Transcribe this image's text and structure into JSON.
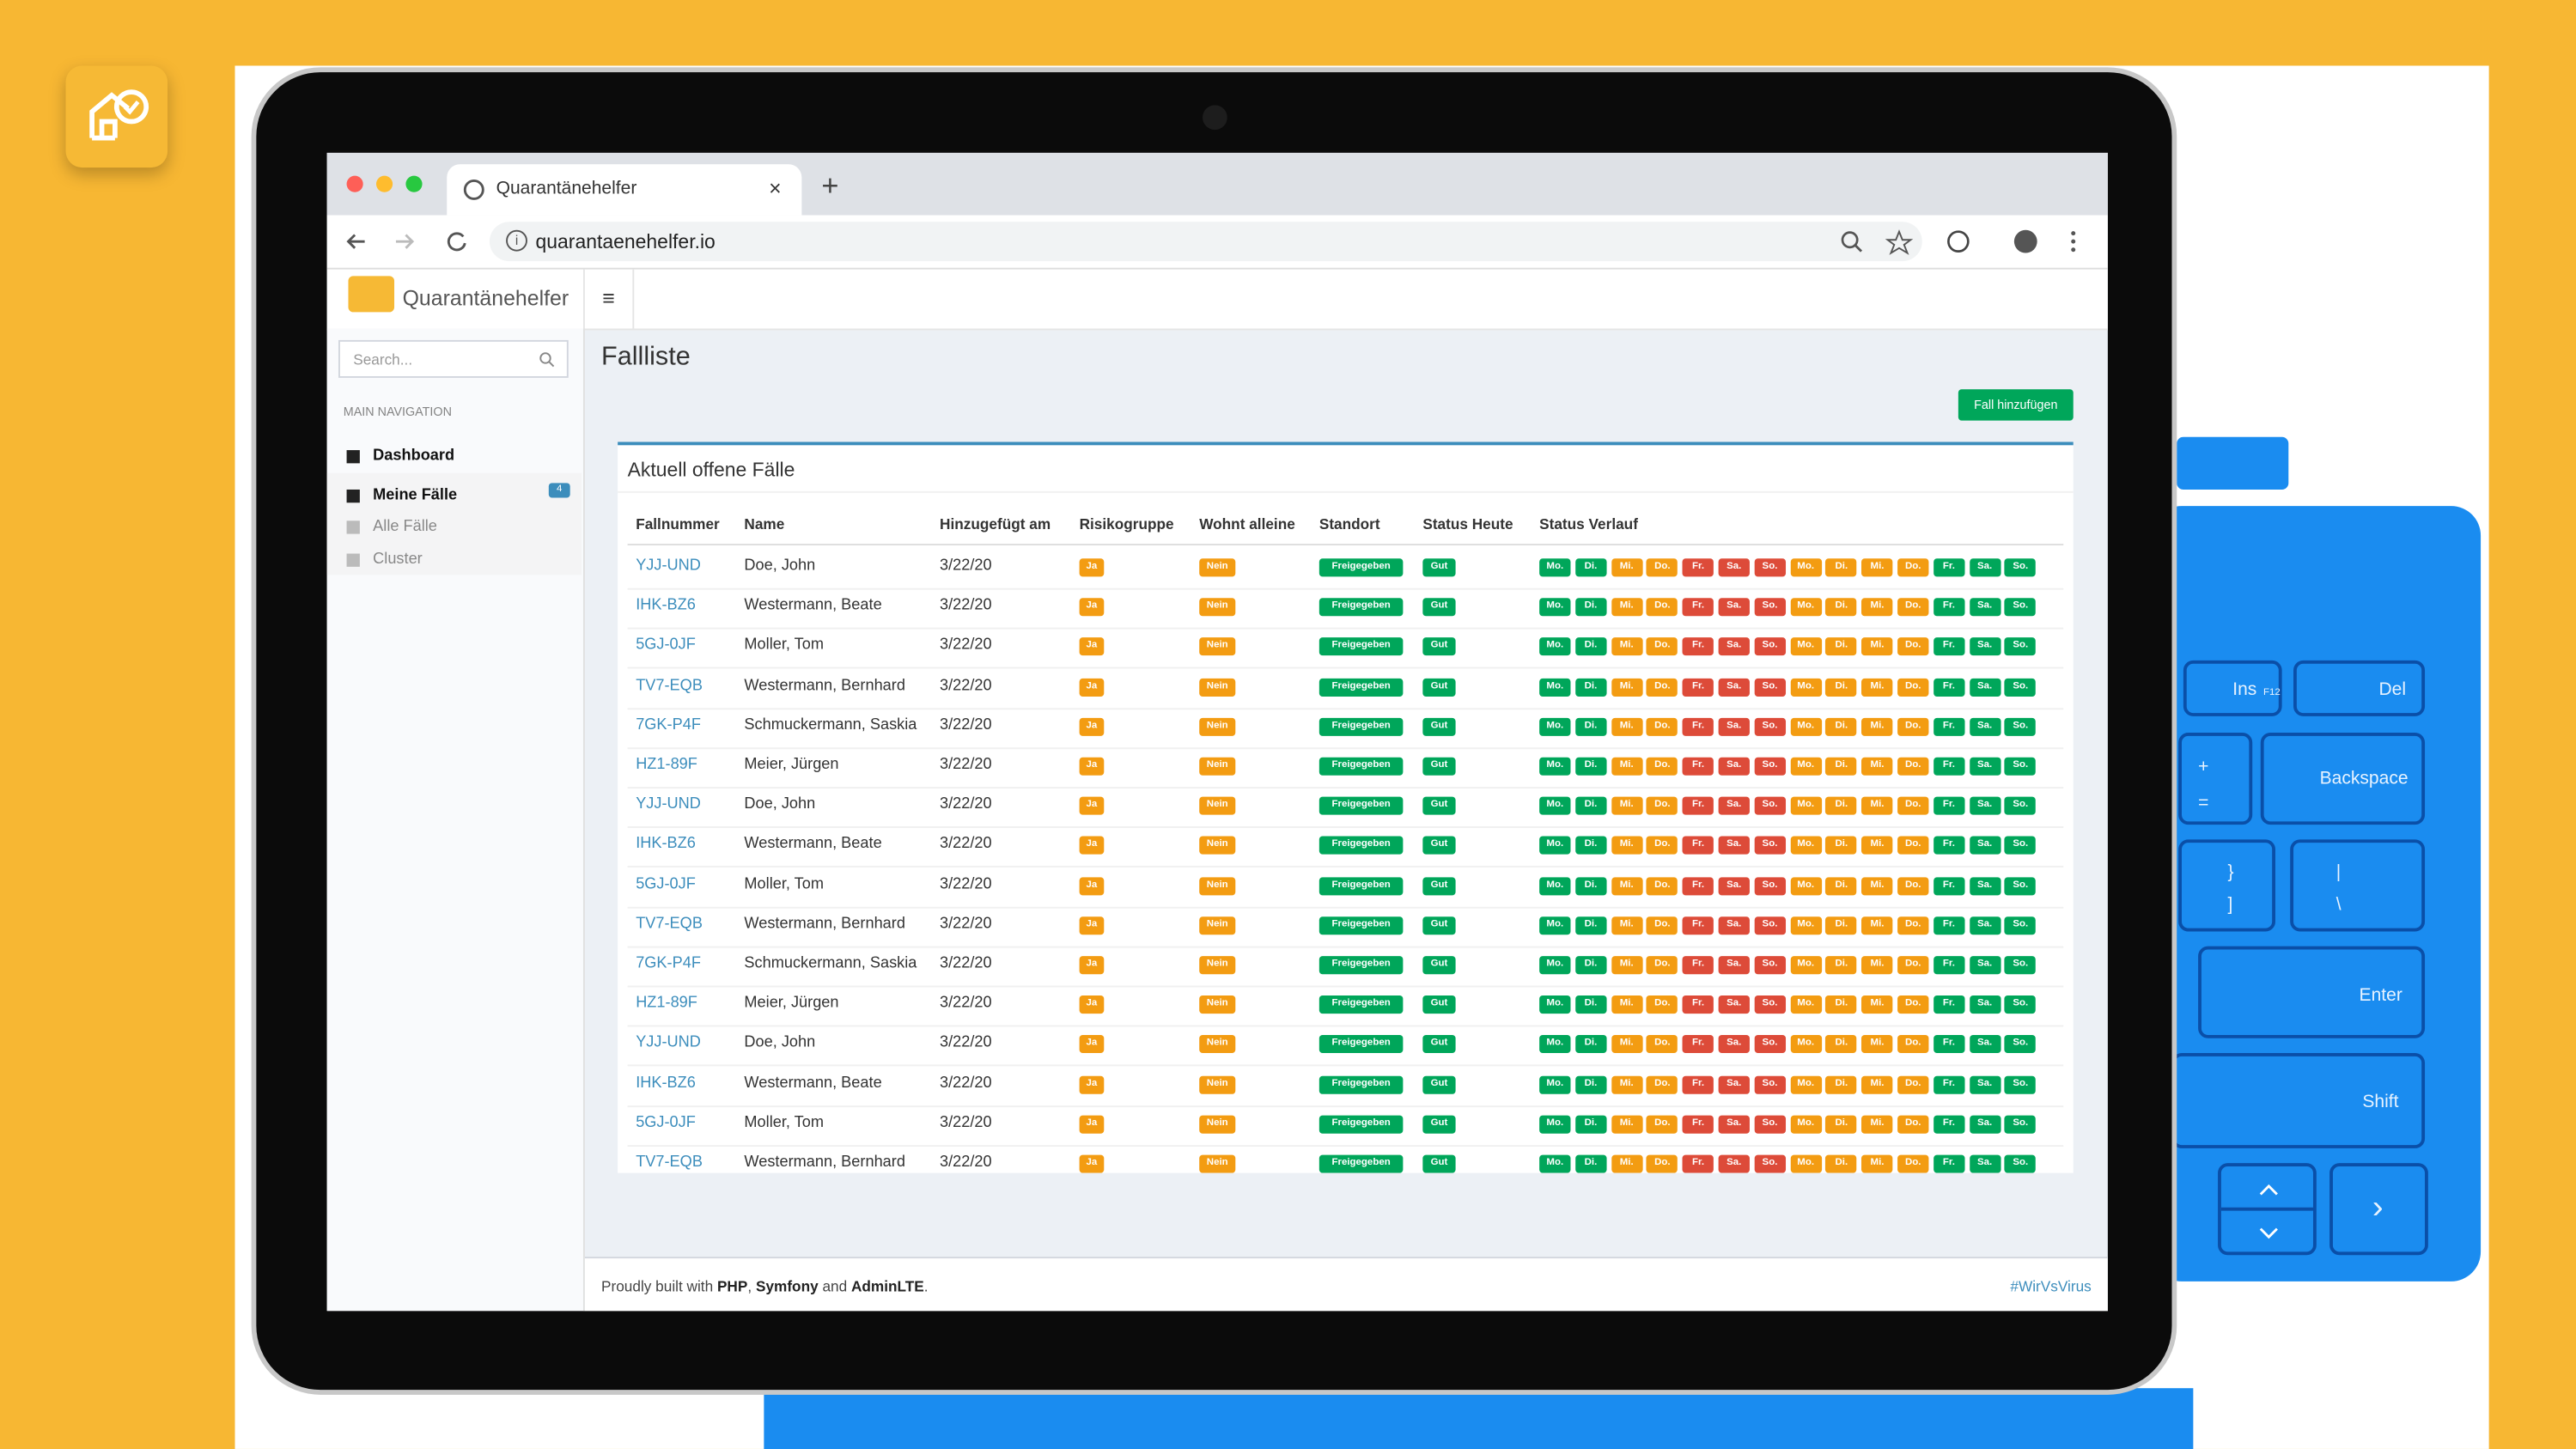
{
  "browser": {
    "tab_title": "Quarantänehelfer",
    "url": "quarantaenehelfer.io"
  },
  "app": {
    "brand": "Quarantänehelfer",
    "sidebar": {
      "search_placeholder": "Search...",
      "nav_header": "MAIN NAVIGATION",
      "items": [
        {
          "label": "Dashboard"
        },
        {
          "label": "Meine Fälle",
          "badge": "4"
        },
        {
          "label": "Alle Fälle"
        },
        {
          "label": "Cluster"
        }
      ]
    },
    "page_title": "Fallliste",
    "add_button": "Fall hinzufügen",
    "box_title": "Aktuell offene Fälle",
    "table": {
      "headers": [
        "Fallnummer",
        "Name",
        "Hinzugefügt am",
        "Risikogruppe",
        "Wohnt alleine",
        "Standort",
        "Status Heute",
        "Status Verlauf"
      ],
      "status_history": [
        {
          "label": "Mo.",
          "color": "#00a65a"
        },
        {
          "label": "Di.",
          "color": "#00a65a"
        },
        {
          "label": "Mi.",
          "color": "#f39c12"
        },
        {
          "label": "Do.",
          "color": "#f39c12"
        },
        {
          "label": "Fr.",
          "color": "#dd4b39"
        },
        {
          "label": "Sa.",
          "color": "#dd4b39"
        },
        {
          "label": "So.",
          "color": "#dd4b39"
        },
        {
          "label": "Mo.",
          "color": "#f39c12"
        },
        {
          "label": "Di.",
          "color": "#f39c12"
        },
        {
          "label": "Mi.",
          "color": "#f39c12"
        },
        {
          "label": "Do.",
          "color": "#f39c12"
        },
        {
          "label": "Fr.",
          "color": "#00a65a"
        },
        {
          "label": "Sa.",
          "color": "#00a65a"
        },
        {
          "label": "So.",
          "color": "#00a65a"
        }
      ],
      "rows": [
        [
          "YJJ-UND",
          "Doe, John",
          "3/22/20",
          "Ja",
          "Nein",
          "Freigegeben",
          "Gut"
        ],
        [
          "IHK-BZ6",
          "Westermann, Beate",
          "3/22/20",
          "Ja",
          "Nein",
          "Freigegeben",
          "Gut"
        ],
        [
          "5GJ-0JF",
          "Moller, Tom",
          "3/22/20",
          "Ja",
          "Nein",
          "Freigegeben",
          "Gut"
        ],
        [
          "TV7-EQB",
          "Westermann, Bernhard",
          "3/22/20",
          "Ja",
          "Nein",
          "Freigegeben",
          "Gut"
        ],
        [
          "7GK-P4F",
          "Schmuckermann, Saskia",
          "3/22/20",
          "Ja",
          "Nein",
          "Freigegeben",
          "Gut"
        ],
        [
          "HZ1-89F",
          "Meier, Jürgen",
          "3/22/20",
          "Ja",
          "Nein",
          "Freigegeben",
          "Gut"
        ],
        [
          "YJJ-UND",
          "Doe, John",
          "3/22/20",
          "Ja",
          "Nein",
          "Freigegeben",
          "Gut"
        ],
        [
          "IHK-BZ6",
          "Westermann, Beate",
          "3/22/20",
          "Ja",
          "Nein",
          "Freigegeben",
          "Gut"
        ],
        [
          "5GJ-0JF",
          "Moller, Tom",
          "3/22/20",
          "Ja",
          "Nein",
          "Freigegeben",
          "Gut"
        ],
        [
          "TV7-EQB",
          "Westermann, Bernhard",
          "3/22/20",
          "Ja",
          "Nein",
          "Freigegeben",
          "Gut"
        ],
        [
          "7GK-P4F",
          "Schmuckermann, Saskia",
          "3/22/20",
          "Ja",
          "Nein",
          "Freigegeben",
          "Gut"
        ],
        [
          "HZ1-89F",
          "Meier, Jürgen",
          "3/22/20",
          "Ja",
          "Nein",
          "Freigegeben",
          "Gut"
        ],
        [
          "YJJ-UND",
          "Doe, John",
          "3/22/20",
          "Ja",
          "Nein",
          "Freigegeben",
          "Gut"
        ],
        [
          "IHK-BZ6",
          "Westermann, Beate",
          "3/22/20",
          "Ja",
          "Nein",
          "Freigegeben",
          "Gut"
        ],
        [
          "5GJ-0JF",
          "Moller, Tom",
          "3/22/20",
          "Ja",
          "Nein",
          "Freigegeben",
          "Gut"
        ],
        [
          "TV7-EQB",
          "Westermann, Bernhard",
          "3/22/20",
          "Ja",
          "Nein",
          "Freigegeben",
          "Gut"
        ]
      ]
    },
    "footer": {
      "parts": [
        "Proudly built with ",
        "PHP",
        ", ",
        "Symfony",
        " and ",
        "AdminLTE",
        "."
      ],
      "hashtag": "#WirVsVirus"
    }
  },
  "keyboard": {
    "keys": [
      "Ins",
      "F12",
      "Del",
      "+",
      "=",
      "Backspace",
      "}",
      "]",
      "|",
      "\\",
      "Enter",
      "Shift",
      "›"
    ]
  }
}
